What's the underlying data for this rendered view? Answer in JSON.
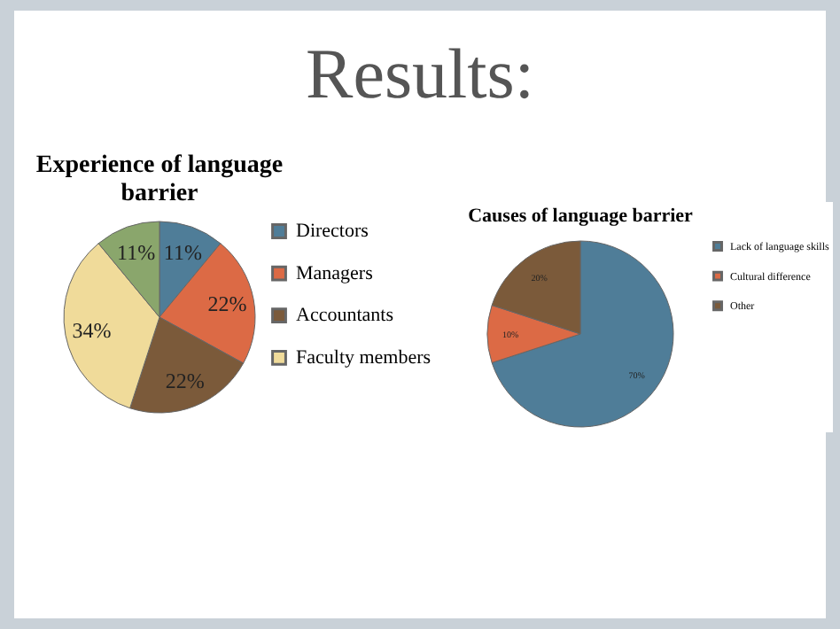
{
  "chart_data": [
    {
      "type": "pie",
      "title": "Experience of language barrier",
      "annotations": [
        "Results:"
      ],
      "categories": [
        "Directors",
        "Managers",
        "Accountants",
        "Faculty members",
        null
      ],
      "values": [
        11,
        22,
        22,
        34,
        11
      ],
      "value_labels": [
        "11%",
        "22%",
        "22%",
        "34%",
        "11%"
      ],
      "colors": [
        "#4f7d98",
        "#dc6a45",
        "#7b5a3a",
        "#f0db9a",
        "#8aa66c"
      ],
      "legend": "right"
    },
    {
      "type": "pie",
      "title": "Causes of language barrier",
      "categories": [
        "Lack of language skills",
        "Cultural difference",
        "Other"
      ],
      "values": [
        70,
        10,
        20
      ],
      "value_labels": [
        "70%",
        "10%",
        "20%"
      ],
      "colors": [
        "#4f7d98",
        "#dc6a45",
        "#7b5a3a"
      ],
      "legend": "right"
    }
  ]
}
